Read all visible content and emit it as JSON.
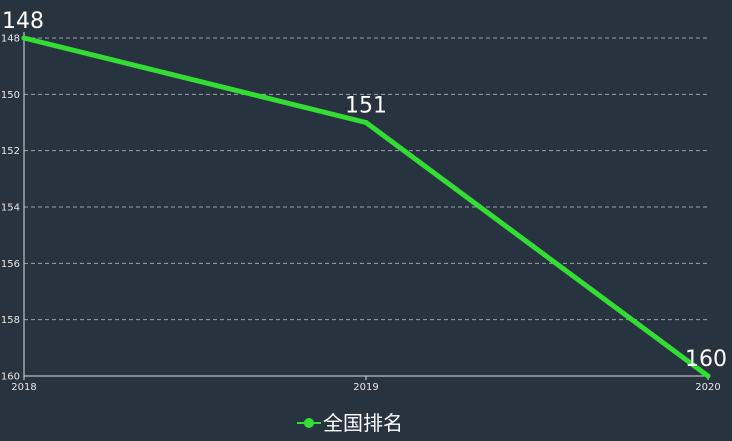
{
  "chart_data": {
    "type": "line",
    "categories": [
      "2018",
      "2019",
      "2020"
    ],
    "series": [
      {
        "name": "全国排名",
        "values": [
          148,
          151,
          160
        ]
      }
    ],
    "y_axis": {
      "inverse": true,
      "min": 148,
      "max": 160,
      "ticks": [
        148,
        150,
        152,
        154,
        156,
        158,
        160
      ],
      "grid": true
    },
    "legend": {
      "position": "bottom-center"
    },
    "colors": {
      "line": "#33dd33",
      "background": "#283340",
      "text": "#ffffff"
    }
  }
}
